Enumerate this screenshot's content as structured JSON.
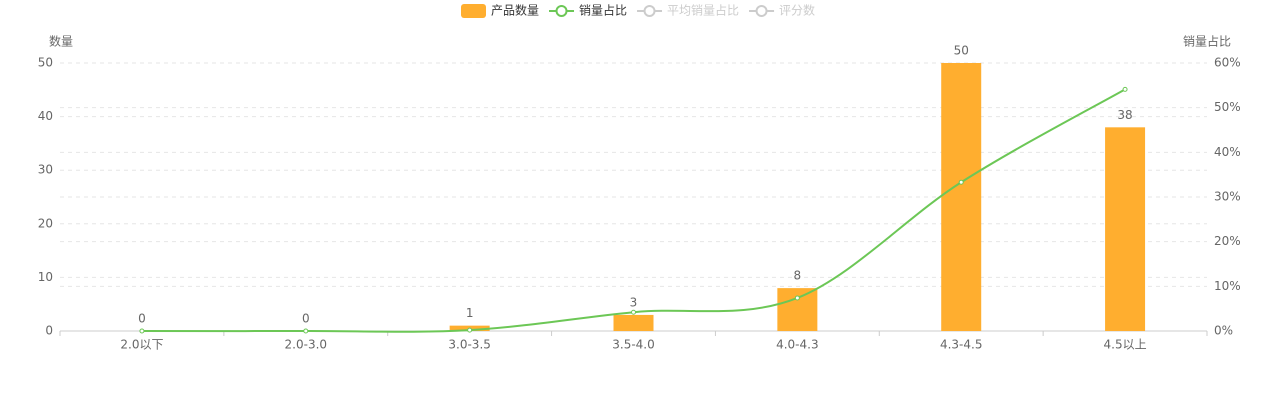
{
  "chart_data": {
    "type": "bar-line",
    "categories": [
      "2.0以下",
      "2.0-3.0",
      "3.0-3.5",
      "3.5-4.0",
      "4.0-4.3",
      "4.3-4.5",
      "4.5以上"
    ],
    "series": [
      {
        "name": "产品数量",
        "type": "bar",
        "color": "#ffae2f",
        "values": [
          0,
          0,
          1,
          3,
          8,
          50,
          38
        ]
      },
      {
        "name": "销量占比",
        "type": "line",
        "axis": "y2",
        "color": "#6cc756",
        "values": [
          0,
          0,
          0.2,
          4.2,
          7.4,
          33.3,
          54.1
        ]
      },
      {
        "name": "平均销量占比",
        "type": "line",
        "color": "#cccccc",
        "visible": false
      },
      {
        "name": "评分数",
        "type": "line",
        "color": "#cccccc",
        "visible": false
      }
    ],
    "ylabel": "数量",
    "y2label": "销量占比",
    "ylim": [
      0,
      50
    ],
    "yticks": [
      0,
      10,
      20,
      30,
      40,
      50
    ],
    "y2lim": [
      0,
      60
    ],
    "y2ticks": [
      {
        "value": 0,
        "label": "0%"
      },
      {
        "value": 10,
        "label": "10%"
      },
      {
        "value": 20,
        "label": "20%"
      },
      {
        "value": 30,
        "label": "30%"
      },
      {
        "value": 40,
        "label": "40%"
      },
      {
        "value": 50,
        "label": "50%"
      },
      {
        "value": 60,
        "label": "60%"
      }
    ],
    "grid": true
  }
}
